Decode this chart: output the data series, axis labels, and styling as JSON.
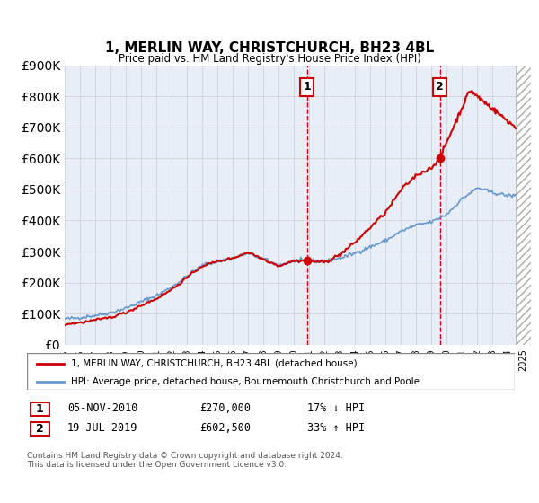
{
  "title": "1, MERLIN WAY, CHRISTCHURCH, BH23 4BL",
  "subtitle": "Price paid vs. HM Land Registry's House Price Index (HPI)",
  "ylim": [
    0,
    900000
  ],
  "yticks": [
    0,
    100000,
    200000,
    300000,
    400000,
    500000,
    600000,
    700000,
    800000,
    900000
  ],
  "xlim_start": 1995.0,
  "xlim_end": 2025.5,
  "grid_color": "#cccccc",
  "bg_color": "#e8eef8",
  "hpi_color": "#6699cc",
  "price_color": "#cc0000",
  "sale1_x": 2010.84,
  "sale1_y": 270000,
  "sale2_x": 2019.54,
  "sale2_y": 602500,
  "vline_color": "#cc0000",
  "label1": "1",
  "label2": "2",
  "legend_price": "1, MERLIN WAY, CHRISTCHURCH, BH23 4BL (detached house)",
  "legend_hpi": "HPI: Average price, detached house, Bournemouth Christchurch and Poole",
  "table_row1_num": "1",
  "table_row1_date": "05-NOV-2010",
  "table_row1_price": "£270,000",
  "table_row1_hpi": "17% ↓ HPI",
  "table_row2_num": "2",
  "table_row2_date": "19-JUL-2019",
  "table_row2_price": "£602,500",
  "table_row2_hpi": "33% ↑ HPI",
  "footer": "Contains HM Land Registry data © Crown copyright and database right 2024.\nThis data is licensed under the Open Government Licence v3.0.",
  "shade_start": 2024.5,
  "shade_end": 2025.5,
  "years_hpi": [
    1995,
    1996,
    1997,
    1998,
    1999,
    2000,
    2001,
    2002,
    2003,
    2004,
    2005,
    2006,
    2007,
    2008,
    2009,
    2010,
    2011,
    2012,
    2013,
    2014,
    2015,
    2016,
    2017,
    2018,
    2019,
    2020,
    2021,
    2022,
    2023,
    2024
  ],
  "hpi_vals": [
    82000,
    87000,
    94000,
    103000,
    117000,
    138000,
    158000,
    185000,
    220000,
    255000,
    268000,
    278000,
    295000,
    275000,
    255000,
    270000,
    270000,
    268000,
    278000,
    295000,
    315000,
    335000,
    365000,
    385000,
    395000,
    420000,
    470000,
    505000,
    490000,
    480000
  ]
}
